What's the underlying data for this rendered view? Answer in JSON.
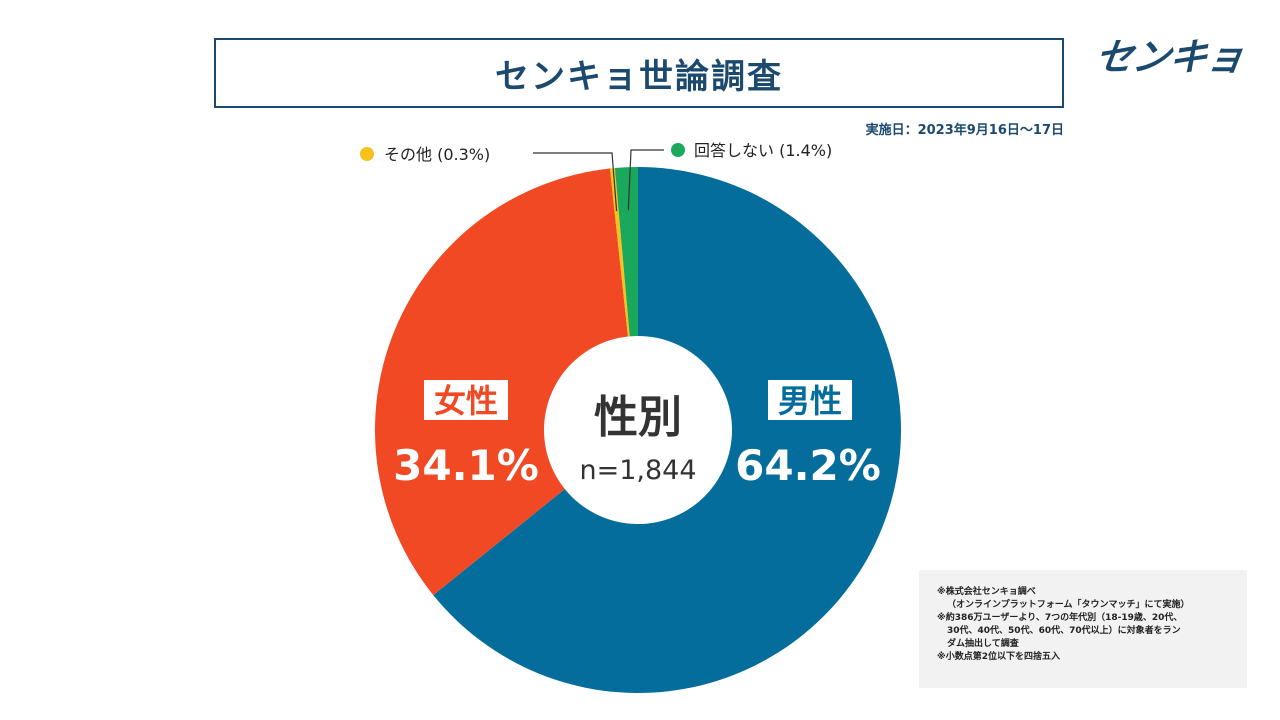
{
  "header": {
    "title": "センキョ世論調査",
    "logo_text": "センキョ",
    "date": "実施日：2023年9月16日～17日"
  },
  "chart_data": {
    "type": "pie",
    "title": "性別",
    "subtitle": "n=1,844",
    "slices": [
      {
        "name": "男性",
        "value": 64.2,
        "label": "64.2%",
        "color": "#046d9b"
      },
      {
        "name": "女性",
        "value": 34.1,
        "label": "34.1%",
        "color": "#f04923"
      },
      {
        "name": "その他",
        "value": 0.3,
        "label": "その他 (0.3%)",
        "color": "#f7c21b"
      },
      {
        "name": "回答しない",
        "value": 1.4,
        "label": "回答しない (1.4%)",
        "color": "#1aa85c"
      }
    ]
  },
  "notes": [
    "※株式会社センキョ調べ",
    "（オンラインプラットフォーム「タウンマッチ」にて実施）",
    "※約386万ユーザーより、7つの年代別（18-19歳、20代、",
    "30代、40代、50代、60代、70代以上）に対象者をラン",
    "ダム抽出して調査",
    "※小数点第2位以下を四捨五入"
  ]
}
